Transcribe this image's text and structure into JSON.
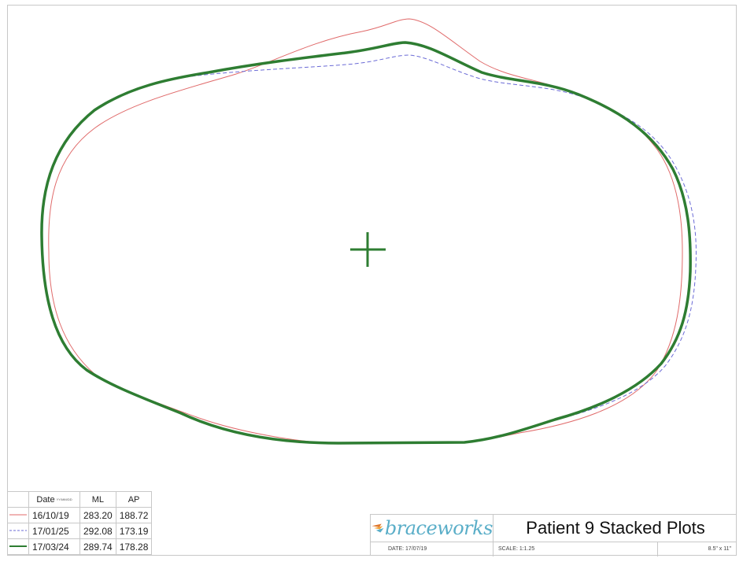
{
  "legend": {
    "header": {
      "date": "Date",
      "date_unit": "YY/MM/DD",
      "ml": "ML",
      "ap": "AP"
    },
    "rows": [
      {
        "date": "16/10/19",
        "ml": "283.20",
        "ap": "188.72",
        "color": "#e06a6a",
        "style": "solid thin"
      },
      {
        "date": "17/01/25",
        "ml": "292.08",
        "ap": "173.19",
        "color": "#6b6bd6",
        "style": "dashed"
      },
      {
        "date": "17/03/24",
        "ml": "289.74",
        "ap": "178.28",
        "color": "#2e7d32",
        "style": "solid thick"
      }
    ]
  },
  "title_block": {
    "logo_text": "braceworks",
    "logo_accent_colors": [
      "#e0762b",
      "#5aaec8"
    ],
    "title": "Patient 9 Stacked Plots",
    "date": "DATE: 17/07/19",
    "scale": "SCALE: 1:1.25",
    "paper_size": "8.5\" x 11\""
  },
  "plot": {
    "center_marker": "crosshair"
  }
}
